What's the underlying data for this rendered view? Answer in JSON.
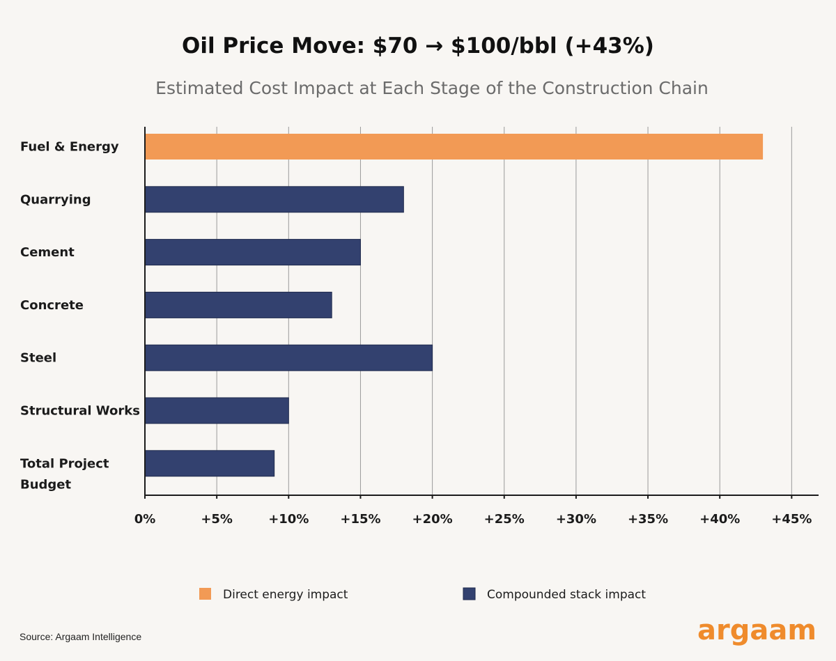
{
  "chart_data": {
    "type": "bar",
    "orientation": "horizontal",
    "title": "Oil Price Move: $70 → $100/bbl (+43%)",
    "subtitle": "Estimated Cost Impact at Each Stage of the Construction Chain",
    "categories": [
      "Fuel & Energy",
      "Quarrying",
      "Cement",
      "Concrete",
      "Steel",
      "Structural Works",
      "Total Project Budget"
    ],
    "values": [
      43,
      18,
      15,
      13,
      20,
      10,
      9
    ],
    "series_assignment": [
      "direct",
      "compounded",
      "compounded",
      "compounded",
      "compounded",
      "compounded",
      "compounded"
    ],
    "series": [
      {
        "key": "direct",
        "name": "Direct energy impact",
        "color": "#f29a55"
      },
      {
        "key": "compounded",
        "name": "Compounded stack impact",
        "color": "#33416f"
      }
    ],
    "x_ticks": [
      0,
      5,
      10,
      15,
      20,
      25,
      30,
      35,
      40,
      45
    ],
    "x_tick_labels": [
      "0%",
      "+5%",
      "+10%",
      "+15%",
      "+20%",
      "+25%",
      "+30%",
      "+35%",
      "+40%",
      "+45%"
    ],
    "xlim": [
      0,
      46.5
    ],
    "xlabel": "",
    "ylabel": "",
    "grid": "vertical",
    "legend_position": "bottom"
  },
  "footer": {
    "source": "Source: Argaam Intelligence",
    "logo_text": "argaam"
  },
  "colors": {
    "background": "#f8f6f3",
    "gridline": "#9a9a9a",
    "axis": "#1b1b1b",
    "brand_orange": "#ef8b2c"
  }
}
